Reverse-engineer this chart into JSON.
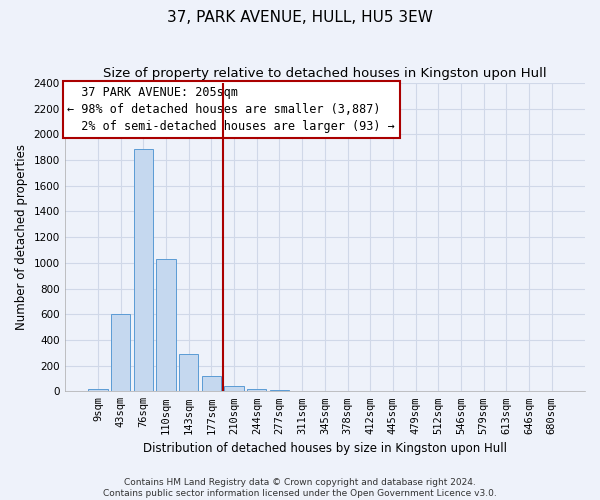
{
  "title": "37, PARK AVENUE, HULL, HU5 3EW",
  "subtitle": "Size of property relative to detached houses in Kingston upon Hull",
  "xlabel": "Distribution of detached houses by size in Kingston upon Hull",
  "ylabel": "Number of detached properties",
  "footer_line1": "Contains HM Land Registry data © Crown copyright and database right 2024.",
  "footer_line2": "Contains public sector information licensed under the Open Government Licence v3.0.",
  "categories": [
    "9sqm",
    "43sqm",
    "76sqm",
    "110sqm",
    "143sqm",
    "177sqm",
    "210sqm",
    "244sqm",
    "277sqm",
    "311sqm",
    "345sqm",
    "378sqm",
    "412sqm",
    "445sqm",
    "479sqm",
    "512sqm",
    "546sqm",
    "579sqm",
    "613sqm",
    "646sqm",
    "680sqm"
  ],
  "values": [
    15,
    600,
    1890,
    1030,
    290,
    120,
    40,
    20,
    10,
    0,
    0,
    0,
    0,
    0,
    0,
    0,
    0,
    0,
    0,
    0,
    0
  ],
  "bar_color": "#c5d8ef",
  "bar_edge_color": "#5b9bd5",
  "property_label": "37 PARK AVENUE: 205sqm",
  "pct_smaller": 98,
  "count_smaller": 3887,
  "pct_larger": 2,
  "count_larger": 93,
  "vline_color": "#aa0000",
  "annotation_box_edgecolor": "#aa0000",
  "ylim": [
    0,
    2400
  ],
  "yticks": [
    0,
    200,
    400,
    600,
    800,
    1000,
    1200,
    1400,
    1600,
    1800,
    2000,
    2200,
    2400
  ],
  "grid_color": "#d0d8e8",
  "bg_color": "#eef2fa",
  "title_fontsize": 11,
  "subtitle_fontsize": 9.5,
  "ylabel_fontsize": 8.5,
  "xlabel_fontsize": 8.5,
  "tick_fontsize": 7.5,
  "annotation_fontsize": 8.5,
  "footer_fontsize": 6.5,
  "vline_x": 5.5
}
